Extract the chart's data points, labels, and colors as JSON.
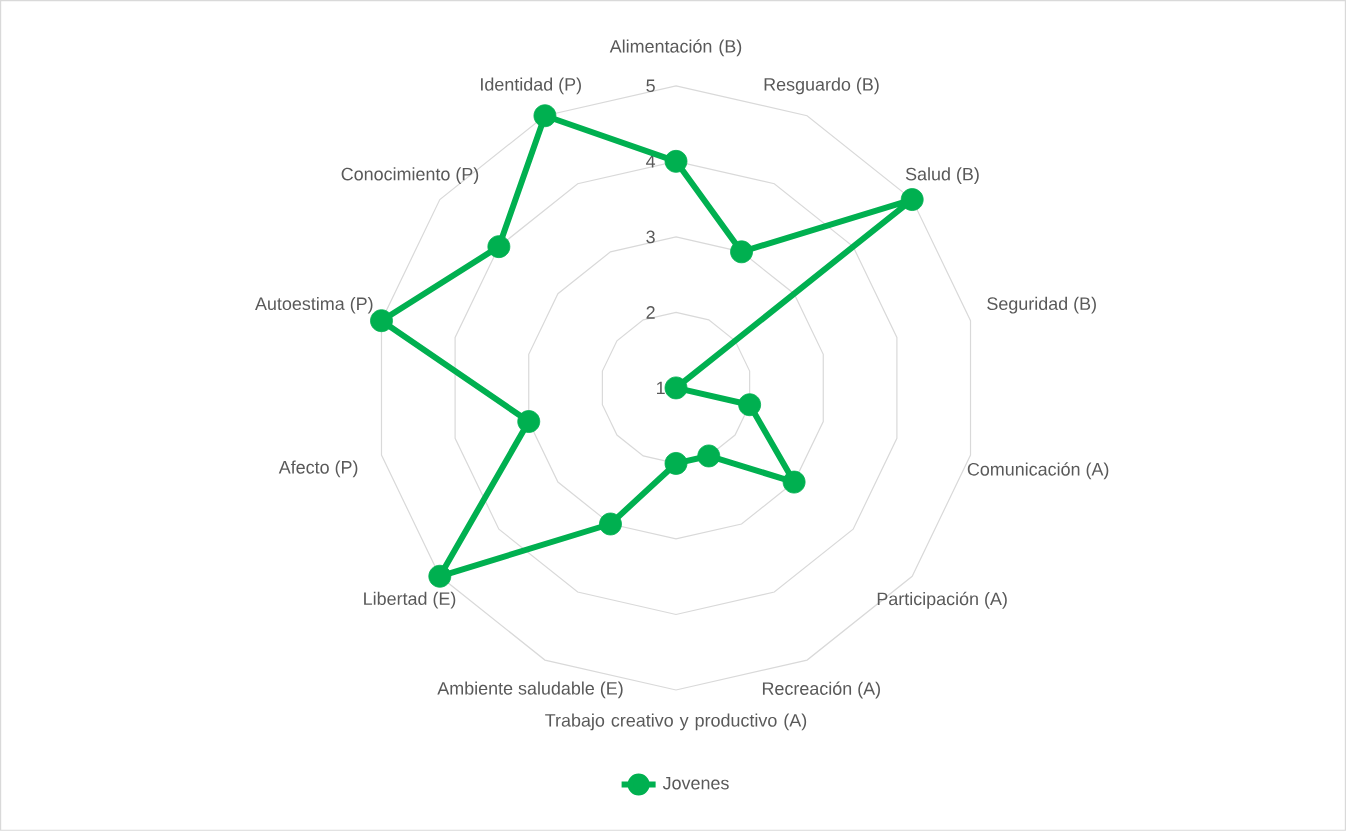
{
  "chart_data": {
    "type": "radar",
    "categories": [
      "Alimentación (B)",
      "Resguardo (B)",
      "Salud (B)",
      "Seguridad (B)",
      "Comunicación (A)",
      "Participación (A)",
      "Recreación (A)",
      "Trabajo creativo y productivo (A)",
      "Ambiente saludable (E)",
      "Libertad (E)",
      "Afecto (P)",
      "Autoestima  (P)",
      "Conocimiento (P)",
      "Identidad (P)"
    ],
    "series": [
      {
        "name": "Jovenes",
        "color": "#00b050",
        "values": [
          4,
          3,
          5,
          1,
          2,
          3,
          2,
          2,
          3,
          5,
          3,
          5,
          4,
          5
        ]
      }
    ],
    "ylim": [
      1,
      5
    ],
    "yticks": [
      1,
      2,
      3,
      4,
      5
    ],
    "grid": true,
    "legend": "bottom",
    "marker": "circle"
  }
}
